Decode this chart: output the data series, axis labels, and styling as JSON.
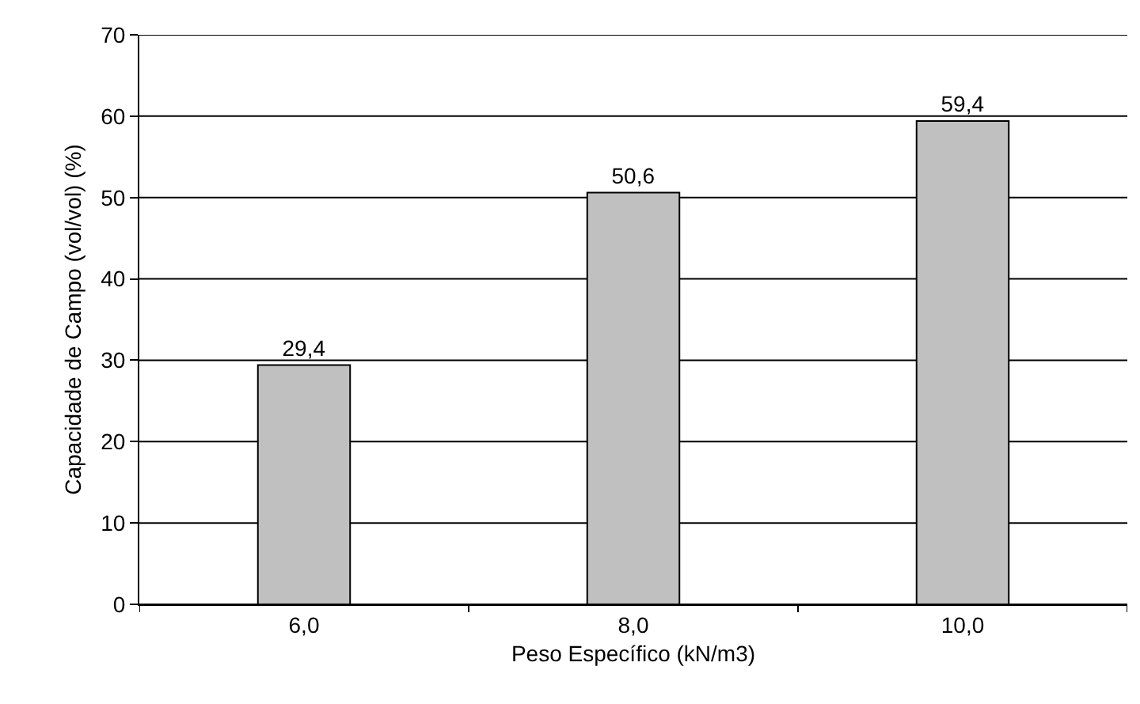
{
  "chart_data": {
    "type": "bar",
    "xlabel": "Peso Específico (kN/m3)",
    "ylabel": "Capacidade de Campo (vol/vol) (%)",
    "categories": [
      "6,0",
      "8,0",
      "10,0"
    ],
    "values": [
      29.4,
      50.6,
      59.4
    ],
    "value_labels": [
      "29,4",
      "50,6",
      "59,4"
    ],
    "color": "#c0c0c0",
    "ylim": [
      0,
      70
    ],
    "yticks": [
      0,
      10,
      20,
      30,
      40,
      50,
      60,
      70
    ],
    "grid": "y"
  }
}
